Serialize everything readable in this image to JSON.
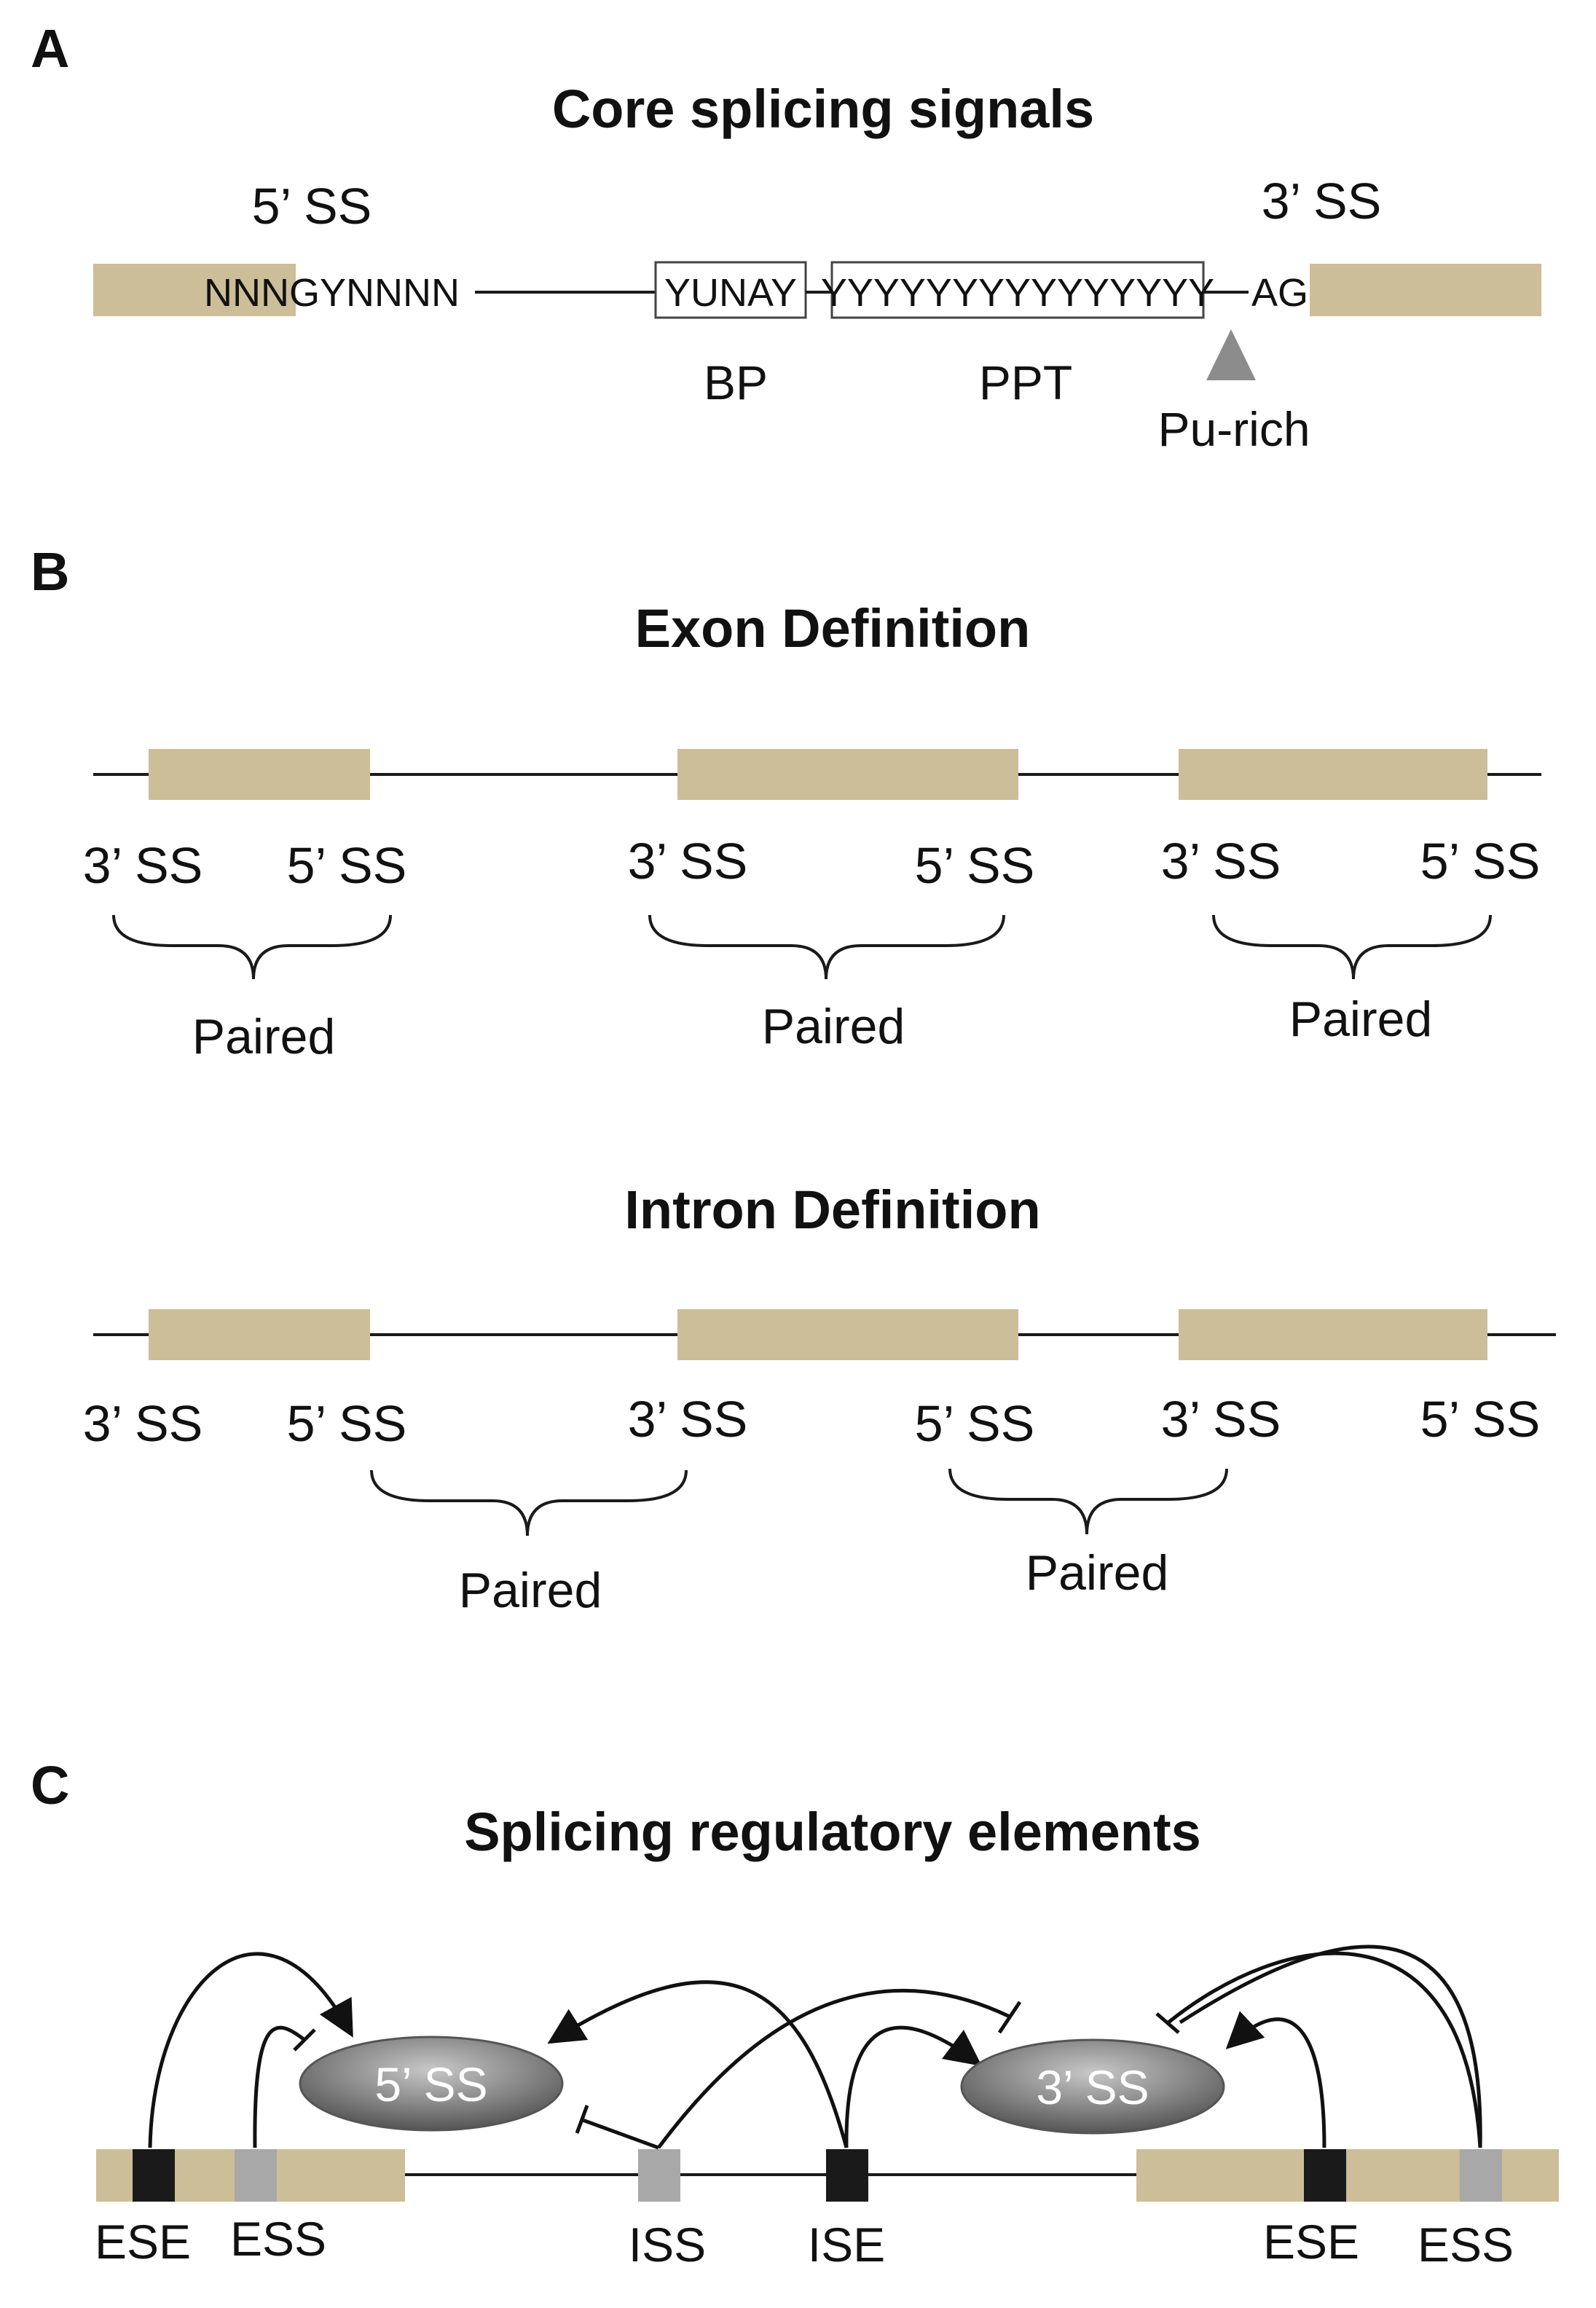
{
  "colors": {
    "exon": "#cbbe98",
    "line": "#1a1a1a",
    "enhancer": "#1a1a1a",
    "silencer": "#a8a8a8",
    "triangle": "#8c8c8c"
  },
  "panel_a": {
    "letter": "A",
    "title": "Core splicing signals",
    "ss5": "5’ SS",
    "ss3": "3’ SS",
    "seq_5": "NNNGYNNNN",
    "seq_bp": "YUNAY",
    "seq_ppt": "YYYYYYYYYYYYYYY",
    "seq_ag": "AG",
    "label_bp": "BP",
    "label_ppt": "PPT",
    "label_purich": "Pu-rich"
  },
  "panel_b": {
    "letter": "B",
    "exon_title": "Exon Definition",
    "intron_title": "Intron Definition",
    "ss3": "3’ SS",
    "ss5": "5’ SS",
    "paired": "Paired"
  },
  "panel_c": {
    "letter": "C",
    "title": "Splicing regulatory elements",
    "ss5_node": "5’ SS",
    "ss3_node": "3’ SS",
    "ese": "ESE",
    "ess": "ESS",
    "iss": "ISS",
    "ise": "ISE"
  }
}
